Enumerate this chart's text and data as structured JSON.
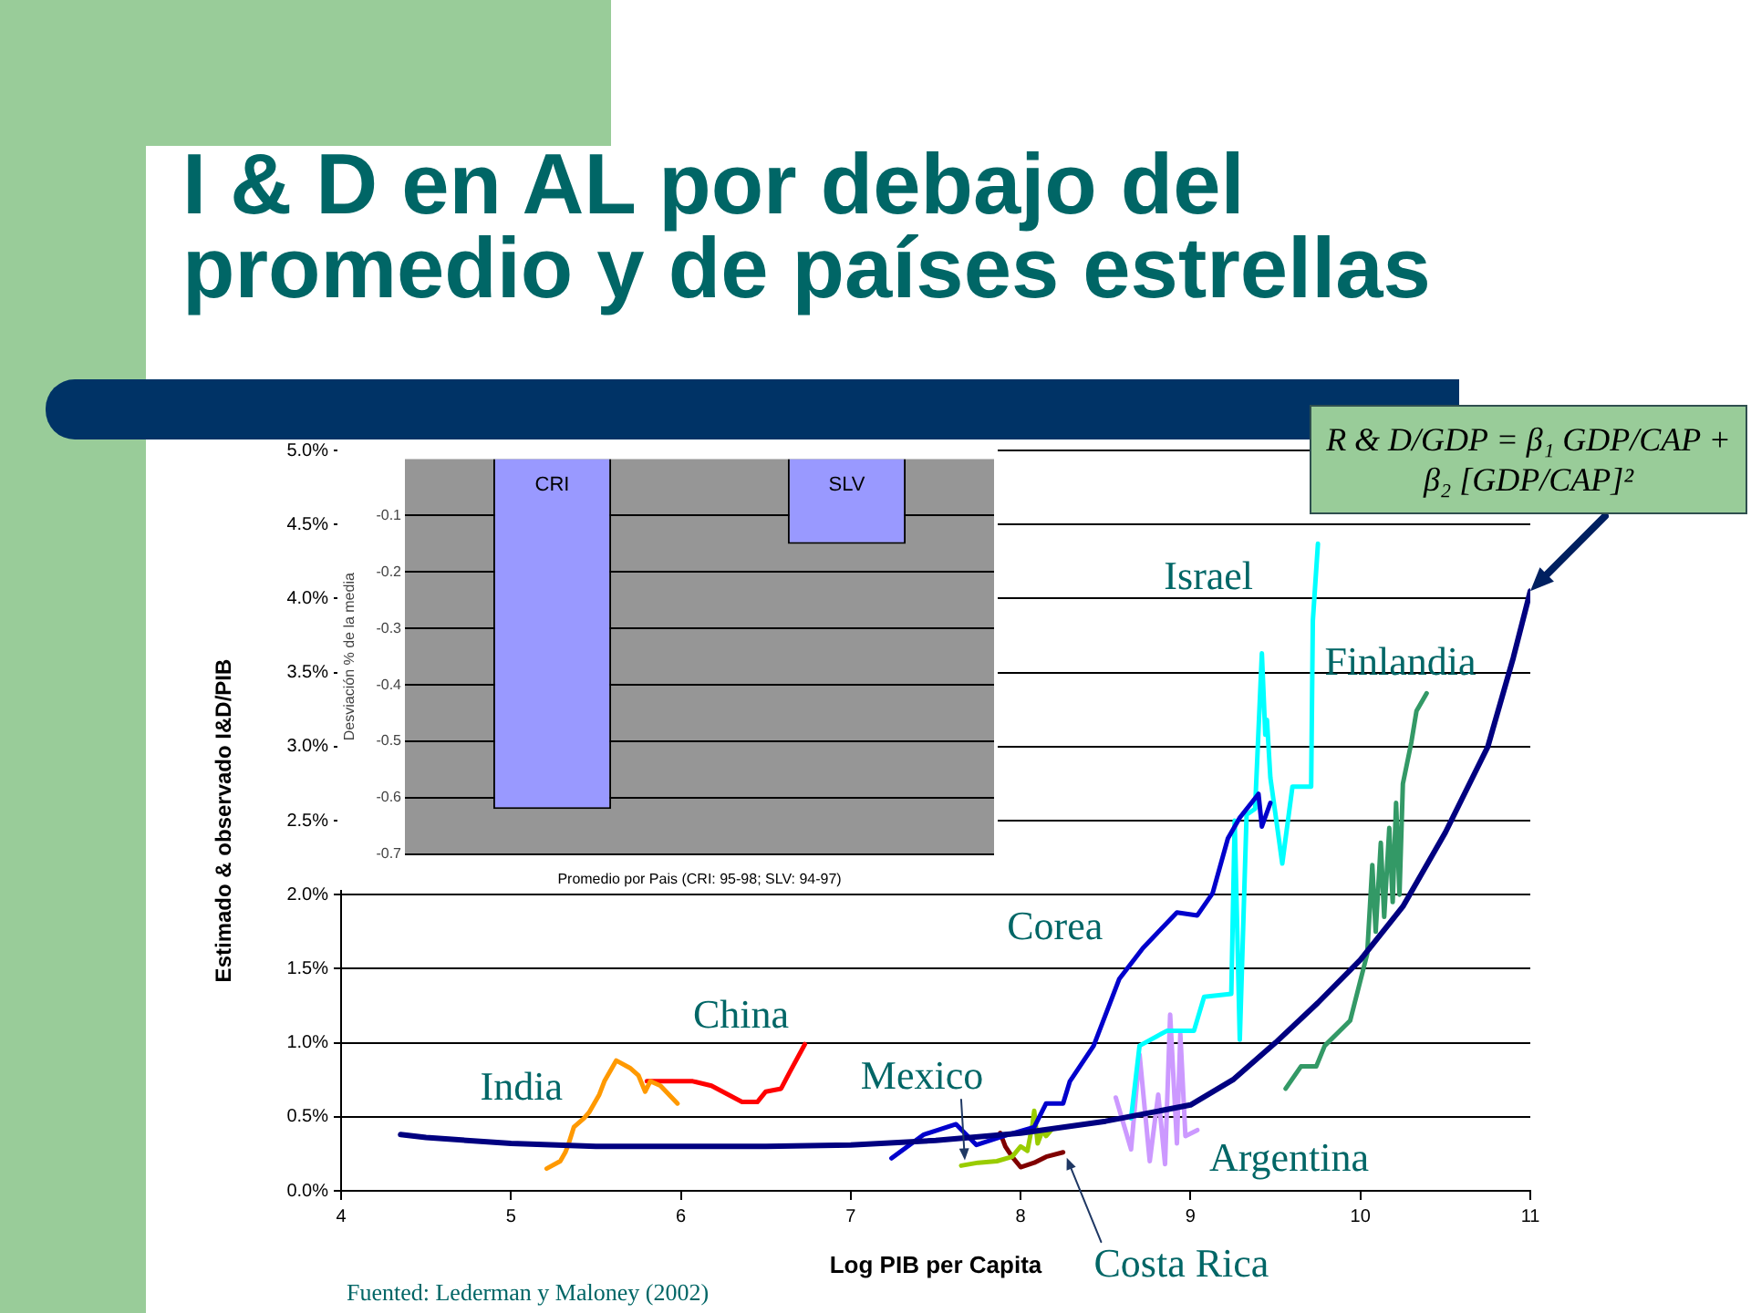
{
  "chart_data": [
    {
      "type": "line",
      "title": "I & D en AL por debajo del promedio y de países estrellas",
      "xlabel": "Log PIB per Capita",
      "ylabel": "Estimado & observado I&D/PIB",
      "xlim": [
        4,
        11
      ],
      "xticks": [
        4,
        5,
        6,
        7,
        8,
        9,
        10,
        11
      ],
      "ylim": [
        0,
        5
      ],
      "yticks": [
        {
          "value": 0,
          "label": "0.0%"
        },
        {
          "value": 0.5,
          "label": "0.5%"
        },
        {
          "value": 1,
          "label": "1.0%"
        },
        {
          "value": 1.5,
          "label": "1.5%"
        },
        {
          "value": 2,
          "label": "2.0%"
        },
        {
          "value": 2.5,
          "label": "2.5%"
        },
        {
          "value": 3,
          "label": "3.0%"
        },
        {
          "value": 3.5,
          "label": "3.5%"
        },
        {
          "value": 4,
          "label": "4.0%"
        },
        {
          "value": 4.5,
          "label": "4.5%"
        },
        {
          "value": 5,
          "label": "5.0%"
        }
      ],
      "grid": "y",
      "series": [
        {
          "color": "#000080",
          "x": [
            4.35,
            4.5,
            5,
            5.5,
            6,
            6.5,
            7,
            7.5,
            8,
            8.5,
            9,
            9.25,
            9.5,
            9.75,
            10,
            10.25,
            10.5,
            10.75,
            10.9,
            11
          ],
          "values": [
            0.38,
            0.36,
            0.32,
            0.3,
            0.3,
            0.3,
            0.31,
            0.34,
            0.39,
            0.47,
            0.58,
            0.75,
            1.0,
            1.27,
            1.56,
            1.92,
            2.42,
            3.0,
            3.6,
            4.05
          ]
        },
        {
          "name": "India",
          "color": "#ff9900",
          "x": [
            5.21,
            5.29,
            5.32,
            5.34,
            5.37,
            5.43,
            5.46,
            5.52,
            5.55,
            5.62,
            5.7,
            5.75,
            5.79,
            5.82,
            5.88,
            5.98
          ],
          "values": [
            0.15,
            0.2,
            0.26,
            0.32,
            0.43,
            0.49,
            0.53,
            0.65,
            0.74,
            0.88,
            0.83,
            0.78,
            0.67,
            0.74,
            0.71,
            0.59
          ]
        },
        {
          "name": "China",
          "color": "#ff0000",
          "x": [
            5.8,
            6.07,
            6.18,
            6.36,
            6.45,
            6.5,
            6.59,
            6.64,
            6.73
          ],
          "values": [
            0.74,
            0.74,
            0.71,
            0.6,
            0.6,
            0.67,
            0.69,
            0.8,
            0.99
          ]
        },
        {
          "name": "Corea",
          "color": "#0000cc",
          "x": [
            7.24,
            7.43,
            7.62,
            7.74,
            7.9,
            8.08,
            8.15,
            8.25,
            8.29,
            8.43,
            8.58,
            8.72,
            8.92,
            9.04,
            9.13,
            9.22,
            9.29,
            9.4,
            9.42,
            9.47
          ],
          "values": [
            0.22,
            0.38,
            0.45,
            0.31,
            0.37,
            0.43,
            0.59,
            0.59,
            0.74,
            0.98,
            1.43,
            1.64,
            1.88,
            1.86,
            2.01,
            2.38,
            2.52,
            2.68,
            2.46,
            2.62
          ]
        },
        {
          "name": "Israel",
          "color": "#00ffff",
          "x": [
            8.65,
            8.7,
            8.86,
            9.02,
            9.08,
            9.24,
            9.26,
            9.29,
            9.33,
            9.38,
            9.42,
            9.44,
            9.45,
            9.47,
            9.51,
            9.54,
            9.6,
            9.71,
            9.72,
            9.75
          ],
          "values": [
            0.49,
            0.98,
            1.08,
            1.08,
            1.31,
            1.33,
            2.5,
            1.02,
            2.54,
            2.58,
            3.63,
            3.08,
            3.18,
            2.79,
            2.46,
            2.21,
            2.73,
            2.73,
            3.85,
            4.37
          ]
        },
        {
          "name": "Finlandia",
          "color": "#339966",
          "x": [
            9.56,
            9.65,
            9.74,
            9.79,
            9.94,
            10.04,
            10.07,
            10.09,
            10.12,
            10.14,
            10.17,
            10.19,
            10.21,
            10.23,
            10.25,
            10.3,
            10.33,
            10.39
          ],
          "values": [
            0.69,
            0.84,
            0.84,
            0.98,
            1.15,
            1.6,
            2.2,
            1.75,
            2.35,
            1.85,
            2.45,
            1.95,
            2.62,
            2.0,
            2.75,
            3.03,
            3.24,
            3.36
          ]
        },
        {
          "name": "Argentina",
          "color": "#cc99ff",
          "x": [
            8.56,
            8.65,
            8.7,
            8.76,
            8.81,
            8.85,
            8.88,
            8.92,
            8.94,
            8.97,
            9.04
          ],
          "values": [
            0.63,
            0.28,
            0.92,
            0.2,
            0.65,
            0.18,
            1.19,
            0.32,
            1.06,
            0.37,
            0.41
          ]
        },
        {
          "name": "Mexico",
          "color": "#99cc00",
          "x": [
            7.65,
            7.75,
            7.86,
            7.95,
            8.0,
            8.04,
            8.07,
            8.08,
            8.1,
            8.13,
            8.15,
            8.18
          ],
          "values": [
            0.17,
            0.19,
            0.2,
            0.23,
            0.3,
            0.27,
            0.45,
            0.54,
            0.32,
            0.41,
            0.37,
            0.41
          ]
        },
        {
          "name": "Costa Rica",
          "color": "#800000",
          "x": [
            7.88,
            7.91,
            7.95,
            8.0,
            8.08,
            8.15,
            8.25
          ],
          "values": [
            0.39,
            0.3,
            0.23,
            0.16,
            0.19,
            0.23,
            0.26
          ]
        }
      ],
      "annotations": [
        {
          "text": "R & D/GDP = β₁ GDP/CAP + β₂ [GDP/CAP]²",
          "x": 11,
          "y": 4.05
        },
        "Fuented: Lederman y Maloney (2002)"
      ]
    },
    {
      "type": "bar",
      "categories": [
        "CRI",
        "SLV"
      ],
      "values": [
        -0.62,
        -0.15
      ],
      "color": "#9999ff",
      "xlabel": "Promedio por Pais (CRI: 95-98; SLV: 94-97)",
      "ylabel": "Desviación % de la media",
      "ylim": [
        -0.7,
        0
      ],
      "yticks": [
        -0.1,
        -0.2,
        -0.3,
        -0.4,
        -0.5,
        -0.6,
        -0.7
      ],
      "grid": "y"
    }
  ]
}
